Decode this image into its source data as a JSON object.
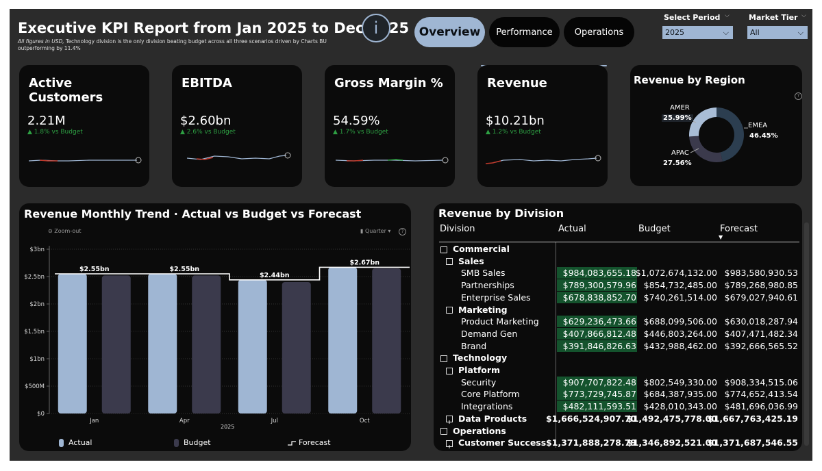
{
  "header": {
    "title": "Executive KPI Report from Jan 2025 to Dec 2025",
    "subtitle_prefix": "All figures in USD,",
    "subtitle_rest": " Technology division is the only division beating budget across all three scenarios  driven by Charts BU outperforming by 11.4%",
    "info_icon": "i"
  },
  "nav": {
    "tabs": [
      {
        "label": "Overview",
        "active": true
      },
      {
        "label": "Performance",
        "active": false
      },
      {
        "label": "Operations",
        "active": false
      }
    ]
  },
  "filters": {
    "period": {
      "label": "Select Period",
      "value": "2025"
    },
    "tier": {
      "label": "Market Tier",
      "value": "All"
    }
  },
  "kpis": [
    {
      "name": "Active Customers",
      "value": "2.21M",
      "delta": "▲ 1.8% vs Budget"
    },
    {
      "name": "EBITDA",
      "value": "$2.60bn",
      "delta": "▲ 2.6% vs Budget"
    },
    {
      "name": "Gross Margin %",
      "value": "54.59%",
      "delta": "▲ 1.7% vs Budget"
    },
    {
      "name": "Revenue",
      "value": "$10.21bn",
      "delta": "▲ 1.2% vs Budget"
    }
  ],
  "region": {
    "title": "Revenue by Region",
    "slices": [
      {
        "name": "EMEA",
        "pct": "46.45%",
        "value": 46.45,
        "color": "#2c3e50"
      },
      {
        "name": "APAC",
        "pct": "27.56%",
        "value": 27.56,
        "color": "#3b3a4c"
      },
      {
        "name": "AMER",
        "pct": "25.99%",
        "value": 25.99,
        "color": "#a9bdd6"
      }
    ]
  },
  "trend": {
    "title": "Revenue Monthly Trend · Actual vs Budget vs Forecast",
    "zoom_label": "Zoom-out",
    "granularity": "Quarter",
    "year_label": "2025",
    "legend": [
      "Actual",
      "Budget",
      "Forecast"
    ]
  },
  "chart_data": {
    "type": "bar",
    "title": "Revenue Monthly Trend · Actual vs Budget vs Forecast",
    "categories": [
      "Jan",
      "Apr",
      "Jul",
      "Oct"
    ],
    "series": [
      {
        "name": "Actual",
        "values": [
          2.55,
          2.55,
          2.44,
          2.67
        ],
        "color": "#9fb6d3"
      },
      {
        "name": "Budget",
        "values": [
          2.52,
          2.52,
          2.4,
          2.65
        ],
        "color": "#3b3a4c"
      },
      {
        "name": "Forecast",
        "values": [
          2.55,
          2.55,
          2.44,
          2.67
        ],
        "color": "#ffffff"
      }
    ],
    "data_labels": [
      "$2.55bn",
      "$2.55bn",
      "$2.44bn",
      "$2.67bn"
    ],
    "yticks": [
      "$0",
      "$500M",
      "$1bn",
      "$1.5bn",
      "$2bn",
      "$2.5bn",
      "$3bn"
    ],
    "ylim": [
      0,
      3
    ],
    "xlabel": "2025",
    "ylabel": ""
  },
  "division": {
    "title": "Revenue by Division",
    "columns": [
      "Division",
      "Actual",
      "Budget",
      "Forecast"
    ],
    "rows": [
      {
        "label": "Commercial",
        "level": 0,
        "toggle": "−",
        "bold": true,
        "actual": "",
        "budget": "",
        "forecast": "",
        "hl": false
      },
      {
        "label": "Sales",
        "level": 1,
        "toggle": "−",
        "bold": true,
        "actual": "",
        "budget": "",
        "forecast": "",
        "hl": false
      },
      {
        "label": "SMB Sales",
        "level": 2,
        "toggle": "",
        "bold": false,
        "actual": "$984,083,655.18",
        "budget": "$1,072,674,132.00",
        "forecast": "$983,580,930.53",
        "hl": true
      },
      {
        "label": "Partnerships",
        "level": 2,
        "toggle": "",
        "bold": false,
        "actual": "$789,300,579.96",
        "budget": "$854,732,485.00",
        "forecast": "$789,268,980.85",
        "hl": true
      },
      {
        "label": "Enterprise Sales",
        "level": 2,
        "toggle": "",
        "bold": false,
        "actual": "$678,838,852.70",
        "budget": "$740,261,514.00",
        "forecast": "$679,027,940.61",
        "hl": true
      },
      {
        "label": "Marketing",
        "level": 1,
        "toggle": "−",
        "bold": true,
        "actual": "",
        "budget": "",
        "forecast": "",
        "hl": false
      },
      {
        "label": "Product Marketing",
        "level": 2,
        "toggle": "",
        "bold": false,
        "actual": "$629,236,473.66",
        "budget": "$688,099,506.00",
        "forecast": "$630,018,287.94",
        "hl": true
      },
      {
        "label": "Demand Gen",
        "level": 2,
        "toggle": "",
        "bold": false,
        "actual": "$407,866,812.48",
        "budget": "$446,803,264.00",
        "forecast": "$407,471,482.34",
        "hl": true
      },
      {
        "label": "Brand",
        "level": 2,
        "toggle": "",
        "bold": false,
        "actual": "$391,846,826.63",
        "budget": "$432,988,462.00",
        "forecast": "$392,666,565.52",
        "hl": true
      },
      {
        "label": "Technology",
        "level": 0,
        "toggle": "−",
        "bold": true,
        "actual": "",
        "budget": "",
        "forecast": "",
        "hl": false
      },
      {
        "label": "Platform",
        "level": 1,
        "toggle": "−",
        "bold": true,
        "actual": "",
        "budget": "",
        "forecast": "",
        "hl": false
      },
      {
        "label": "Security",
        "level": 2,
        "toggle": "",
        "bold": false,
        "actual": "$907,707,822.48",
        "budget": "$802,549,330.00",
        "forecast": "$908,334,515.06",
        "hl": true
      },
      {
        "label": "Core Platform",
        "level": 2,
        "toggle": "",
        "bold": false,
        "actual": "$773,729,745.87",
        "budget": "$684,387,935.00",
        "forecast": "$774,652,413.54",
        "hl": true
      },
      {
        "label": "Integrations",
        "level": 2,
        "toggle": "",
        "bold": false,
        "actual": "$482,111,593.51",
        "budget": "$428,010,343.00",
        "forecast": "$481,696,036.99",
        "hl": true
      },
      {
        "label": "Data Products",
        "level": 1,
        "toggle": "+",
        "bold": true,
        "actual": "$1,666,524,907.70",
        "budget": "$1,492,475,778.00",
        "forecast": "$1,667,763,425.19",
        "hl": false
      },
      {
        "label": "Operations",
        "level": 0,
        "toggle": "−",
        "bold": true,
        "actual": "",
        "budget": "",
        "forecast": "",
        "hl": false
      },
      {
        "label": "Customer Success",
        "level": 1,
        "toggle": "+",
        "bold": true,
        "actual": "$1,371,888,278.79",
        "budget": "$1,346,892,521.00",
        "forecast": "$1,371,687,546.55",
        "hl": false
      }
    ]
  }
}
